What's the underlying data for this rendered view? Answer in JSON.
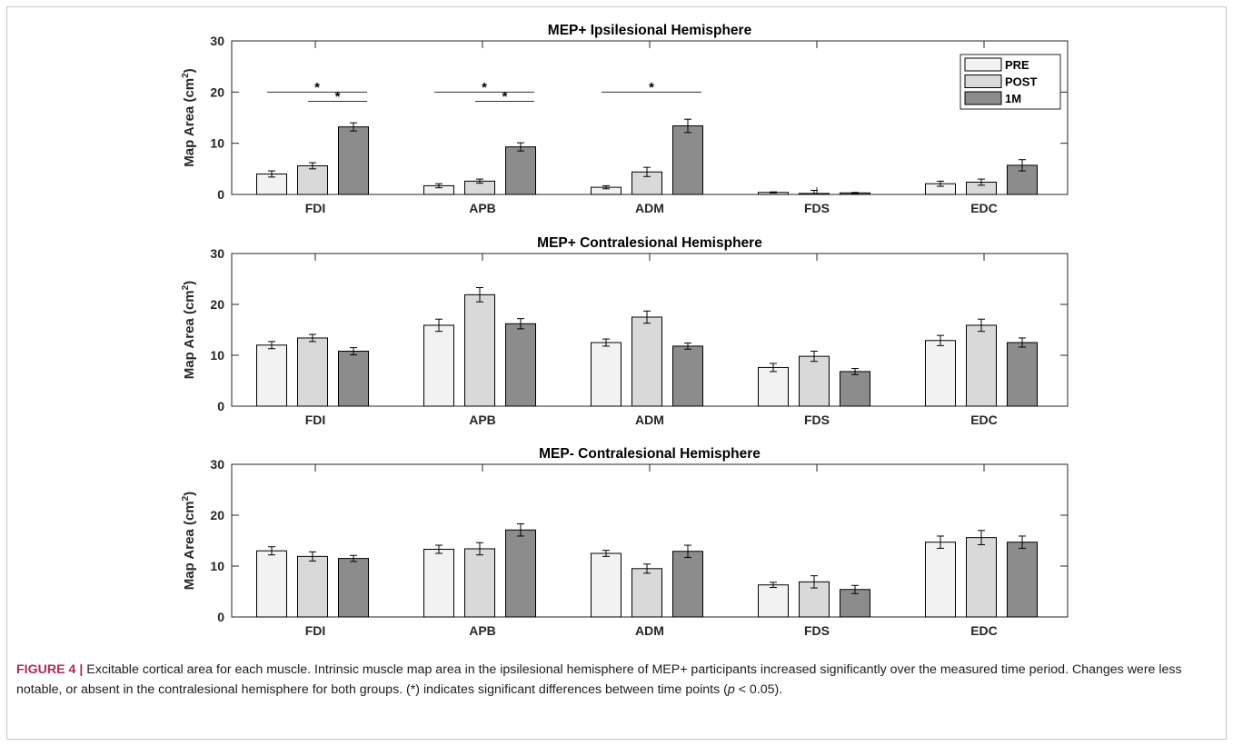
{
  "chart_data": [
    {
      "type": "bar",
      "title": "MEP+ Ipsilesional Hemisphere",
      "xlabel": "",
      "ylabel_main": "Map Area (cm",
      "ylabel_sup": "2",
      "ylabel_tail": ")",
      "ylim": [
        0,
        30
      ],
      "yticks": [
        "0",
        "10",
        "20",
        "30"
      ],
      "categories": [
        "FDI",
        "APB",
        "ADM",
        "FDS",
        "EDC"
      ],
      "legend": {
        "position": "top-right",
        "entries": [
          "PRE",
          "POST",
          "1M"
        ]
      },
      "series": [
        {
          "name": "PRE",
          "color": "#f2f2f2",
          "values": [
            4.0,
            1.7,
            1.4,
            0.4,
            2.1
          ],
          "errors": [
            0.6,
            0.4,
            0.3,
            0.1,
            0.5
          ]
        },
        {
          "name": "POST",
          "color": "#d9d9d9",
          "values": [
            5.6,
            2.6,
            4.4,
            0.2,
            2.4
          ],
          "errors": [
            0.6,
            0.4,
            0.9,
            0.6,
            0.6
          ]
        },
        {
          "name": "1M",
          "color": "#8c8c8c",
          "values": [
            13.2,
            9.3,
            13.4,
            0.3,
            5.7
          ],
          "errors": [
            0.8,
            0.8,
            1.3,
            0.1,
            1.1
          ]
        }
      ],
      "significance": [
        {
          "category": 0,
          "from": "PRE",
          "to": "1M",
          "y": 20.0,
          "label": "*"
        },
        {
          "category": 0,
          "from": "POST",
          "to": "1M",
          "y": 18.2,
          "label": "*"
        },
        {
          "category": 1,
          "from": "PRE",
          "to": "1M",
          "y": 20.0,
          "label": "*"
        },
        {
          "category": 1,
          "from": "POST",
          "to": "1M",
          "y": 18.2,
          "label": "*"
        },
        {
          "category": 2,
          "from": "PRE",
          "to": "1M",
          "y": 20.0,
          "label": "*"
        }
      ]
    },
    {
      "type": "bar",
      "title": "MEP+ Contralesional Hemisphere",
      "xlabel": "",
      "ylabel_main": "Map Area (cm",
      "ylabel_sup": "2",
      "ylabel_tail": ")",
      "ylim": [
        0,
        30
      ],
      "yticks": [
        "0",
        "10",
        "20",
        "30"
      ],
      "categories": [
        "FDI",
        "APB",
        "ADM",
        "FDS",
        "EDC"
      ],
      "series": [
        {
          "name": "PRE",
          "color": "#f2f2f2",
          "values": [
            12.0,
            15.9,
            12.5,
            7.6,
            12.9
          ],
          "errors": [
            0.7,
            1.2,
            0.7,
            0.8,
            1.0
          ]
        },
        {
          "name": "POST",
          "color": "#d9d9d9",
          "values": [
            13.4,
            21.9,
            17.5,
            9.8,
            15.9
          ],
          "errors": [
            0.7,
            1.4,
            1.2,
            1.0,
            1.2
          ]
        },
        {
          "name": "1M",
          "color": "#8c8c8c",
          "values": [
            10.8,
            16.2,
            11.8,
            6.8,
            12.5
          ],
          "errors": [
            0.7,
            1.0,
            0.6,
            0.6,
            0.9
          ]
        }
      ]
    },
    {
      "type": "bar",
      "title": "MEP- Contralesional Hemisphere",
      "xlabel": "",
      "ylabel_main": "Map Area (cm",
      "ylabel_sup": "2",
      "ylabel_tail": ")",
      "ylim": [
        0,
        30
      ],
      "yticks": [
        "0",
        "10",
        "20",
        "30"
      ],
      "categories": [
        "FDI",
        "APB",
        "ADM",
        "FDS",
        "EDC"
      ],
      "series": [
        {
          "name": "PRE",
          "color": "#f2f2f2",
          "values": [
            13.0,
            13.3,
            12.5,
            6.3,
            14.7
          ],
          "errors": [
            0.8,
            0.8,
            0.6,
            0.5,
            1.2
          ]
        },
        {
          "name": "POST",
          "color": "#d9d9d9",
          "values": [
            11.9,
            13.4,
            9.5,
            6.9,
            15.6
          ],
          "errors": [
            0.9,
            1.2,
            0.9,
            1.2,
            1.4
          ]
        },
        {
          "name": "1M",
          "color": "#8c8c8c",
          "values": [
            11.5,
            17.1,
            12.9,
            5.4,
            14.7
          ],
          "errors": [
            0.6,
            1.2,
            1.2,
            0.8,
            1.2
          ]
        }
      ]
    }
  ],
  "caption": {
    "label": "FIGURE 4 |",
    "text1": " Excitable cortical area for each muscle. Intrinsic muscle map area in the ipsilesional hemisphere of MEP+ participants increased significantly over the measured time period. Changes were less notable, or absent in the contralesional hemisphere for both groups. (*) indicates significant differences between time points (",
    "p": "p",
    "text2": " < 0.05)."
  }
}
